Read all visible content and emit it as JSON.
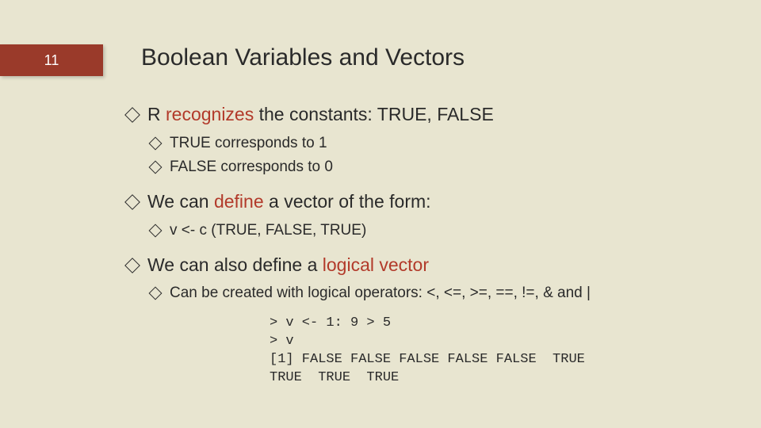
{
  "page_number": "11",
  "title": "Boolean Variables and Vectors",
  "accent_color": "#b23a2a",
  "badge_color": "#9a3a2a",
  "background_color": "#e8e5d0",
  "bullets": {
    "b1_pre": "R ",
    "b1_accent": "recognizes",
    "b1_post": " the constants: TRUE, FALSE",
    "b1_sub1": "TRUE corresponds to 1",
    "b1_sub2": "FALSE corresponds to 0",
    "b2_pre": "We can ",
    "b2_accent": "define",
    "b2_post": " a vector of the form:",
    "b2_sub1": "v <- c (TRUE, FALSE, TRUE)",
    "b3_pre": "We can also define a ",
    "b3_accent": "logical vector",
    "b3_sub1": "Can be created with logical operators: <, <=, >=, ==, !=, & and |"
  },
  "code": "> v <- 1: 9 > 5\n> v\n[1] FALSE FALSE FALSE FALSE FALSE  TRUE\nTRUE  TRUE  TRUE"
}
